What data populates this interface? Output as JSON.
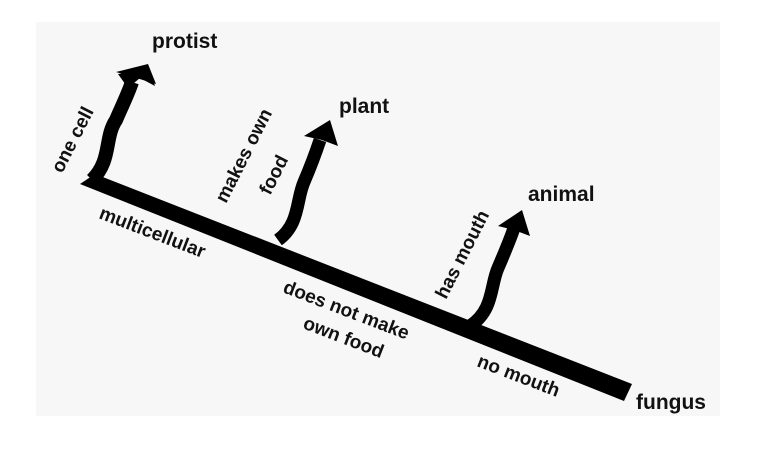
{
  "diagram": {
    "leaves": {
      "protist": "protist",
      "plant": "plant",
      "animal": "animal",
      "fungus": "fungus"
    },
    "branch_labels": {
      "one_cell": "one cell",
      "makes_own_food_1": "makes own",
      "makes_own_food_2": "food",
      "has_mouth": "has mouth"
    },
    "trunk_labels": {
      "multicellular": "multicellular",
      "does_not_make_1": "does not make",
      "does_not_make_2": "own food",
      "no_mouth": "no mouth"
    },
    "colors": {
      "ink": "#000000",
      "panel": "#f7f7f7",
      "background": "#ffffff"
    }
  }
}
